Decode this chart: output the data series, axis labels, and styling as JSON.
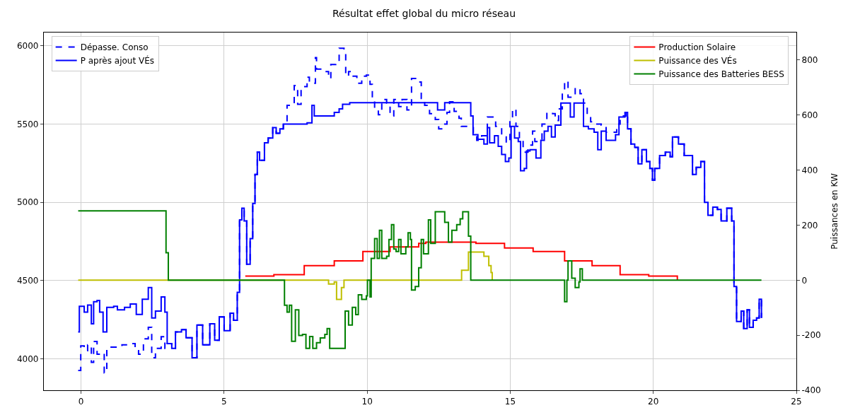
{
  "chart_data": {
    "type": "step",
    "title": "Résultat effet global du micro réseau",
    "y2label": "Puissances en KW",
    "xlim": [
      -1.3,
      25
    ],
    "xticks": [
      0,
      5,
      10,
      15,
      20,
      25
    ],
    "ylim": [
      3800,
      6085
    ],
    "yticks": [
      4000,
      4500,
      5000,
      5500,
      6000
    ],
    "y2lim": [
      -400,
      900
    ],
    "y2ticks": [
      -400,
      -200,
      0,
      200,
      400,
      600,
      800
    ],
    "grid": true,
    "legend": [
      "top left",
      "top right"
    ],
    "series": [
      {
        "name": "Dépasse. Conso",
        "color": "#0000ff",
        "line_style": "dashed",
        "axis": "y",
        "x": [
          -0.1,
          -0.01,
          0.11,
          0.23,
          0.36,
          0.44,
          0.56,
          0.69,
          0.81,
          0.9,
          1.19,
          1.43,
          1.68,
          1.89,
          2.01,
          2.18,
          2.35,
          2.47,
          2.6,
          2.8,
          2.93,
          3.01,
          3.17,
          3.3,
          3.51,
          3.67,
          3.88,
          4.05,
          4.25,
          4.5,
          4.67,
          4.83,
          5.0,
          5.21,
          5.33,
          5.46,
          5.54,
          5.62,
          5.7,
          5.79,
          5.91,
          6.0,
          6.08,
          6.16,
          6.24,
          6.41,
          6.54,
          6.7,
          6.82,
          6.95,
          7.07,
          7.2,
          7.45,
          7.57,
          7.69,
          7.9,
          7.98,
          8.19,
          8.23,
          8.48,
          8.65,
          8.73,
          8.9,
          9.02,
          9.19,
          9.25,
          9.35,
          9.48,
          9.64,
          9.81,
          9.97,
          10.1,
          10.18,
          10.26,
          10.39,
          10.51,
          10.68,
          10.8,
          10.93,
          11.1,
          11.22,
          11.39,
          11.55,
          11.76,
          11.89,
          12.01,
          12.18,
          12.38,
          12.5,
          12.63,
          12.79,
          12.88,
          13.04,
          13.21,
          13.29,
          13.54,
          13.71,
          13.83,
          14.0,
          14.2,
          14.37,
          14.49,
          14.7,
          14.86,
          14.99,
          15.08,
          15.2,
          15.32,
          15.45,
          15.62,
          15.78,
          15.86,
          15.99,
          16.11,
          16.28,
          16.48,
          16.57,
          16.69,
          16.82,
          16.9,
          17.02,
          17.19,
          17.27,
          17.44,
          17.56,
          17.69,
          17.81,
          17.98,
          18.18,
          18.35,
          18.72,
          18.84,
          19.05,
          19.1,
          19.22,
          19.35,
          19.47,
          19.6,
          19.76,
          19.88,
          19.97,
          20.05,
          20.22,
          20.42,
          20.59,
          20.67,
          20.88,
          21.08,
          21.37,
          21.5,
          21.66,
          21.79,
          21.91,
          22.08,
          22.24,
          22.37,
          22.57,
          22.74,
          22.82,
          22.91,
          23.07,
          23.16,
          23.28,
          23.36,
          23.49,
          23.61,
          23.7,
          23.78
        ],
        "values": [
          3926,
          4083,
          4053,
          4090,
          3978,
          4112,
          4030,
          4038,
          3911,
          4075,
          4075,
          4090,
          4098,
          4053,
          4030,
          4128,
          4202,
          4008,
          4068,
          4142,
          4068,
          4098,
          4068,
          4172,
          4187,
          4135,
          4008,
          4217,
          4090,
          4224,
          4120,
          4269,
          4180,
          4292,
          4247,
          4426,
          4888,
          4963,
          4881,
          4605,
          4769,
          4993,
          5179,
          5321,
          5269,
          5381,
          5411,
          5478,
          5441,
          5470,
          5500,
          5620,
          5746,
          5627,
          5739,
          5799,
          5761,
          5925,
          5851,
          5836,
          5791,
          5881,
          5896,
          5985,
          5955,
          5806,
          5836,
          5806,
          5761,
          5806,
          5813,
          5754,
          5664,
          5597,
          5560,
          5657,
          5634,
          5552,
          5657,
          5612,
          5657,
          5590,
          5791,
          5769,
          5664,
          5620,
          5567,
          5530,
          5470,
          5500,
          5575,
          5642,
          5582,
          5537,
          5485,
          5478,
          5441,
          5396,
          5426,
          5545,
          5545,
          5485,
          5418,
          5381,
          5515,
          5597,
          5485,
          5396,
          5321,
          5366,
          5455,
          5388,
          5396,
          5500,
          5575,
          5567,
          5523,
          5597,
          5709,
          5776,
          5672,
          5679,
          5731,
          5694,
          5634,
          5560,
          5515,
          5500,
          5493,
          5448,
          5500,
          5552,
          5575,
          5470,
          5373,
          5351,
          5246,
          5336,
          5261,
          5217,
          5142,
          5217,
          5299,
          5321,
          5291,
          5418,
          5373,
          5299,
          5179,
          5224,
          5261,
          5000,
          4918,
          4970,
          4955,
          4881,
          4963,
          4881,
          4463,
          4239,
          4306,
          4194,
          4314,
          4202,
          4247,
          4262,
          4381,
          4262
        ]
      },
      {
        "name": "P après ajout VÉs",
        "color": "#0000ff",
        "line_style": "solid",
        "axis": "y",
        "x": [
          -0.1,
          -0.06,
          0.11,
          0.23,
          0.36,
          0.44,
          0.56,
          0.65,
          0.77,
          0.9,
          1.14,
          1.27,
          1.52,
          1.72,
          1.93,
          2.14,
          2.35,
          2.47,
          2.6,
          2.8,
          2.93,
          3.01,
          3.17,
          3.3,
          3.51,
          3.67,
          3.88,
          4.05,
          4.25,
          4.5,
          4.67,
          4.83,
          5.0,
          5.21,
          5.33,
          5.46,
          5.54,
          5.62,
          5.7,
          5.79,
          5.91,
          6.0,
          6.08,
          6.16,
          6.24,
          6.41,
          6.54,
          6.7,
          6.82,
          6.95,
          7.07,
          7.9,
          8.07,
          8.15,
          8.85,
          9.02,
          9.14,
          9.39,
          12.46,
          12.71,
          13.62,
          13.7,
          13.87,
          14.08,
          14.2,
          14.28,
          14.45,
          14.58,
          14.7,
          14.83,
          14.95,
          15.03,
          15.15,
          15.28,
          15.36,
          15.49,
          15.57,
          15.69,
          15.9,
          16.07,
          16.19,
          16.32,
          16.44,
          16.57,
          16.77,
          17.1,
          17.23,
          17.56,
          17.73,
          17.93,
          18.06,
          18.18,
          18.35,
          18.68,
          18.8,
          19.01,
          19.1,
          19.22,
          19.35,
          19.47,
          19.6,
          19.76,
          19.88,
          19.97,
          20.05,
          20.22,
          20.42,
          20.59,
          20.67,
          20.88,
          21.08,
          21.37,
          21.5,
          21.66,
          21.79,
          21.91,
          22.08,
          22.24,
          22.37,
          22.57,
          22.74,
          22.82,
          22.91,
          23.07,
          23.16,
          23.28,
          23.36,
          23.49,
          23.61,
          23.7,
          23.78
        ],
        "values": [
          4172,
          4336,
          4299,
          4344,
          4224,
          4366,
          4374,
          4299,
          4172,
          4329,
          4336,
          4314,
          4329,
          4351,
          4284,
          4381,
          4456,
          4262,
          4306,
          4396,
          4299,
          4098,
          4068,
          4172,
          4187,
          4135,
          4008,
          4217,
          4090,
          4224,
          4120,
          4269,
          4180,
          4292,
          4247,
          4426,
          4888,
          4963,
          4881,
          4605,
          4769,
          4993,
          5179,
          5321,
          5269,
          5381,
          5411,
          5478,
          5441,
          5470,
          5500,
          5508,
          5620,
          5552,
          5575,
          5597,
          5627,
          5637,
          5590,
          5637,
          5552,
          5433,
          5403,
          5373,
          5478,
          5381,
          5426,
          5358,
          5306,
          5261,
          5284,
          5485,
          5411,
          5389,
          5202,
          5217,
          5329,
          5336,
          5284,
          5396,
          5455,
          5485,
          5418,
          5493,
          5634,
          5545,
          5634,
          5485,
          5470,
          5448,
          5336,
          5455,
          5396,
          5433,
          5545,
          5575,
          5470,
          5373,
          5351,
          5246,
          5336,
          5261,
          5217,
          5142,
          5217,
          5299,
          5321,
          5291,
          5418,
          5373,
          5299,
          5179,
          5224,
          5261,
          5000,
          4918,
          4970,
          4955,
          4881,
          4963,
          4881,
          4463,
          4239,
          4306,
          4194,
          4314,
          4202,
          4247,
          4262,
          4381,
          4262
        ]
      },
      {
        "name": "Production Solaire",
        "color": "#ff0000",
        "line_style": "solid",
        "axis": "y2",
        "x": [
          5.74,
          6.74,
          7.8,
          8.85,
          9.85,
          10.8,
          11.8,
          12.05,
          13.8,
          14.8,
          15.8,
          16.9,
          17.86,
          18.84,
          19.84,
          20.84
        ],
        "values": [
          15,
          20,
          53,
          70,
          104,
          121,
          134,
          138,
          134,
          117,
          104,
          70,
          53,
          20,
          15,
          0
        ]
      },
      {
        "name": "Puissance des VÉs",
        "color": "#bfbf00",
        "line_style": "solid",
        "axis": "y2",
        "x": [
          -0.1,
          8.65,
          8.85,
          8.93,
          9.1,
          9.19,
          13.3,
          13.54,
          14.08,
          14.25,
          14.33,
          14.37
        ],
        "values": [
          0,
          -14,
          -6,
          -70,
          -27,
          0,
          36,
          102,
          87,
          53,
          28,
          0
        ]
      },
      {
        "name": "Puissance des Batteries BESS",
        "color": "#008000",
        "line_style": "solid",
        "axis": "y2",
        "x": [
          -0.1,
          2.97,
          3.05,
          7.11,
          7.2,
          7.28,
          7.36,
          7.49,
          7.61,
          7.74,
          7.86,
          7.99,
          8.1,
          8.23,
          8.36,
          8.52,
          8.6,
          8.69,
          9.23,
          9.35,
          9.48,
          9.6,
          9.69,
          9.81,
          9.97,
          10.01,
          10.1,
          10.14,
          10.26,
          10.35,
          10.43,
          10.51,
          10.68,
          10.76,
          10.85,
          10.93,
          11.01,
          11.1,
          11.18,
          11.35,
          11.43,
          11.51,
          11.55,
          11.68,
          11.8,
          11.89,
          11.97,
          12.14,
          12.22,
          12.38,
          12.71,
          12.84,
          12.96,
          13.13,
          13.25,
          13.34,
          13.54,
          13.62,
          16.9,
          16.98,
          17.02,
          17.15,
          17.27,
          17.4,
          17.44,
          17.52,
          23.78
        ],
        "values": [
          252,
          100,
          0,
          -91,
          -116,
          -91,
          -222,
          -108,
          -201,
          -197,
          -248,
          -205,
          -248,
          -227,
          -210,
          -197,
          -176,
          -248,
          -112,
          -163,
          -99,
          -125,
          -53,
          -70,
          -57,
          0,
          -61,
          79,
          151,
          79,
          181,
          79,
          87,
          148,
          202,
          113,
          104,
          148,
          96,
          121,
          172,
          148,
          -36,
          -23,
          45,
          148,
          96,
          219,
          134,
          249,
          210,
          138,
          181,
          202,
          223,
          249,
          160,
          0,
          -78,
          0,
          70,
          7,
          -27,
          -6,
          41,
          0,
          0
        ]
      }
    ]
  }
}
